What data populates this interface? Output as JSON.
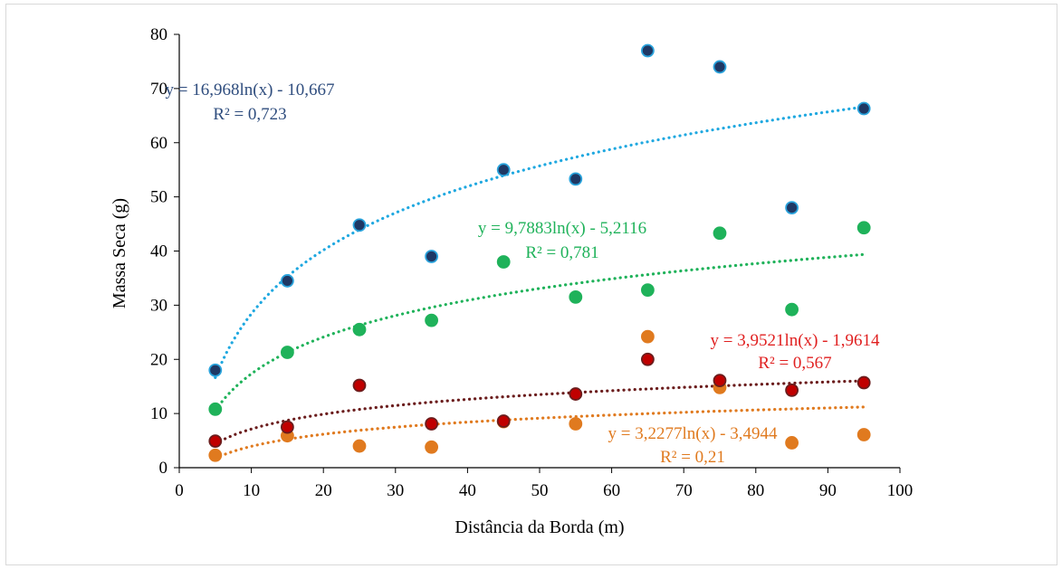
{
  "chart_data": {
    "type": "scatter",
    "xlabel": "Distância da Borda (m)",
    "ylabel": "Massa Seca (g)",
    "xlim": [
      0,
      100
    ],
    "ylim": [
      0,
      80
    ],
    "x_ticks": [
      0,
      10,
      20,
      30,
      40,
      50,
      60,
      70,
      80,
      90,
      100
    ],
    "y_ticks": [
      0,
      10,
      20,
      30,
      40,
      50,
      60,
      70,
      80
    ],
    "grid": false,
    "legend": "none",
    "x": [
      5,
      15,
      25,
      35,
      45,
      55,
      65,
      75,
      85,
      95
    ],
    "series": [
      {
        "values": [
          18.0,
          34.5,
          44.8,
          39.0,
          55.0,
          53.3,
          77.0,
          74.0,
          48.0,
          66.3
        ],
        "marker_color": "#1f3864",
        "marker_edge": "#2aa3dc",
        "trend_color": "#1fa8e0",
        "trendline": {
          "a": 16.968,
          "b": -10.667
        },
        "equation": "y = 16,968ln(x) - 10,667",
        "r2": "R² = 0,723",
        "label_color": "#2f4d7e"
      },
      {
        "values": [
          10.8,
          21.3,
          25.5,
          27.2,
          38.0,
          31.5,
          32.8,
          43.3,
          29.2,
          44.3
        ],
        "marker_color": "#1fb25a",
        "marker_edge": "#1fb25a",
        "trend_color": "#1fb25a",
        "trendline": {
          "a": 9.7883,
          "b": -5.2116
        },
        "equation": "y = 9,7883ln(x) - 5,2116",
        "r2": "R² = 0,781",
        "label_color": "#1fb25a"
      },
      {
        "values": [
          4.9,
          7.5,
          15.2,
          8.1,
          8.6,
          13.6,
          20.0,
          16.1,
          14.3,
          15.7
        ],
        "marker_color": "#c00000",
        "marker_edge": "#6b1d1d",
        "trend_color": "#6b1d1d",
        "trendline": {
          "a": 3.9521,
          "b": -1.9614
        },
        "equation": "y = 3,9521ln(x) - 1,9614",
        "r2": "R² = 0,567",
        "label_color": "#e02020"
      },
      {
        "values": [
          2.3,
          5.9,
          4.0,
          3.8,
          8.5,
          8.1,
          24.2,
          14.8,
          4.6,
          6.1
        ],
        "marker_color": "#e07a1f",
        "marker_edge": "#e07a1f",
        "trend_color": "#e07a1f",
        "trendline": {
          "a": 3.2277,
          "b": -3.4944
        },
        "equation": "y = 3,2277ln(x) - 3,4944",
        "r2": "R² = 0,21",
        "label_color": "#e07a1f"
      }
    ]
  }
}
